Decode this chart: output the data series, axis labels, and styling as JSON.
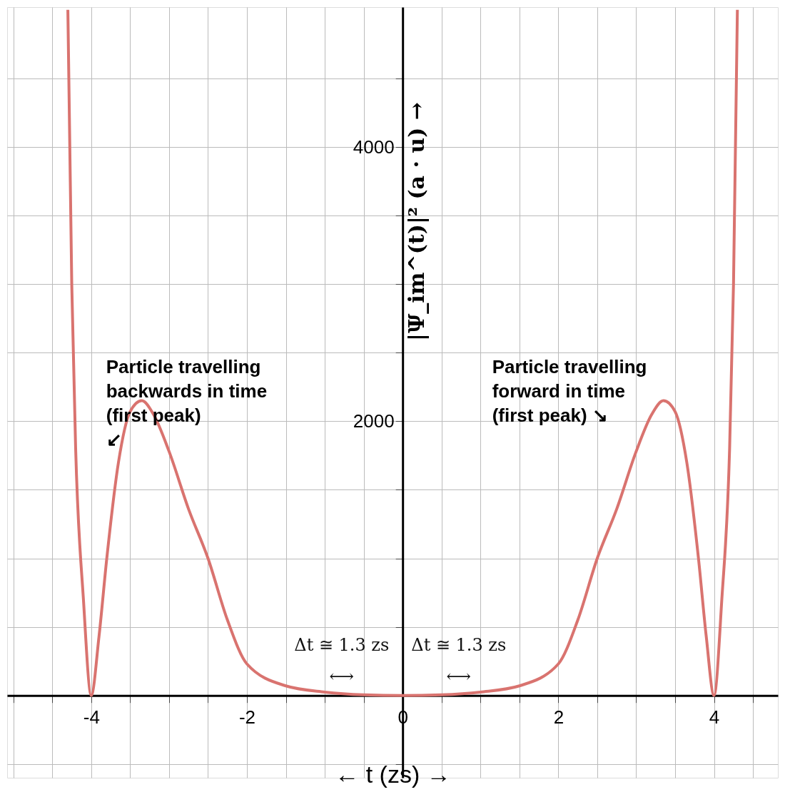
{
  "chart_data": {
    "type": "line",
    "xlabel": "←   t (zs)   →",
    "ylabel": "|Ψ_im^(t)|² (a · u) →",
    "x": [
      -4.3,
      -4.25,
      -4.2,
      -4.1,
      -4,
      -3.9,
      -3.8,
      -3.65,
      -3.5,
      -3.35,
      -3.2,
      -3,
      -2.75,
      -2.5,
      -2.25,
      -2,
      -1.5,
      -1,
      -0.5,
      0,
      0.5,
      1,
      1.5,
      2,
      2.25,
      2.5,
      2.75,
      3,
      3.2,
      3.35,
      3.5,
      3.65,
      3.8,
      3.9,
      4,
      4.1,
      4.2,
      4.25,
      4.3
    ],
    "series": [
      {
        "color": "#d9736f",
        "values": [
          5000,
          3000,
          1800,
          700,
          0,
          430,
          1000,
          1700,
          2070,
          2150,
          2050,
          1780,
          1360,
          1000,
          550,
          230,
          70,
          25,
          5,
          0,
          5,
          25,
          70,
          230,
          550,
          1000,
          1360,
          1780,
          2050,
          2150,
          2070,
          1700,
          1000,
          430,
          0,
          700,
          1800,
          3000,
          5000
        ]
      }
    ],
    "xlim": [
      -5.08,
      4.82
    ],
    "ylim": [
      -600,
      5020
    ],
    "xticks": [
      {
        "value": -5,
        "label": null
      },
      {
        "value": -4.5,
        "label": null
      },
      -4,
      {
        "value": -3.5,
        "label": null
      },
      {
        "value": -3,
        "label": null
      },
      {
        "value": -2.5,
        "label": null
      },
      -2,
      {
        "value": -1.5,
        "label": null
      },
      {
        "value": -1,
        "label": null
      },
      {
        "value": -0.5,
        "label": null
      },
      0,
      {
        "value": 0.5,
        "label": null
      },
      {
        "value": 1,
        "label": null
      },
      {
        "value": 1.5,
        "label": null
      },
      2,
      {
        "value": 2.5,
        "label": null
      },
      {
        "value": 3,
        "label": null
      },
      {
        "value": 3.5,
        "label": null
      },
      4,
      {
        "value": 4.5,
        "label": null
      }
    ],
    "yticks": [
      {
        "value": -500,
        "label": null
      },
      {
        "value": 0,
        "label": null
      },
      {
        "value": 500,
        "label": null
      },
      {
        "value": 1000,
        "label": null
      },
      {
        "value": 1500,
        "label": null
      },
      2000,
      {
        "value": 2500,
        "label": null
      },
      {
        "value": 3000,
        "label": null
      },
      {
        "value": 3500,
        "label": null
      },
      4000,
      {
        "value": 4500,
        "label": null
      }
    ],
    "grid": true,
    "marker": "none",
    "line_style": "solid",
    "annotations": [
      {
        "text": "Particle travelling\nbackwards in time\n          (first peak)\n↙",
        "x": -3.35,
        "y": 2150
      },
      {
        "text": "Particle travelling\nforward in time\n(first peak)          ↘",
        "x": 3.35,
        "y": 2150
      },
      "Δt ≅ 1.3 zs\n⟷",
      "Δt ≅ 1.3 zs\n⟷"
    ]
  }
}
